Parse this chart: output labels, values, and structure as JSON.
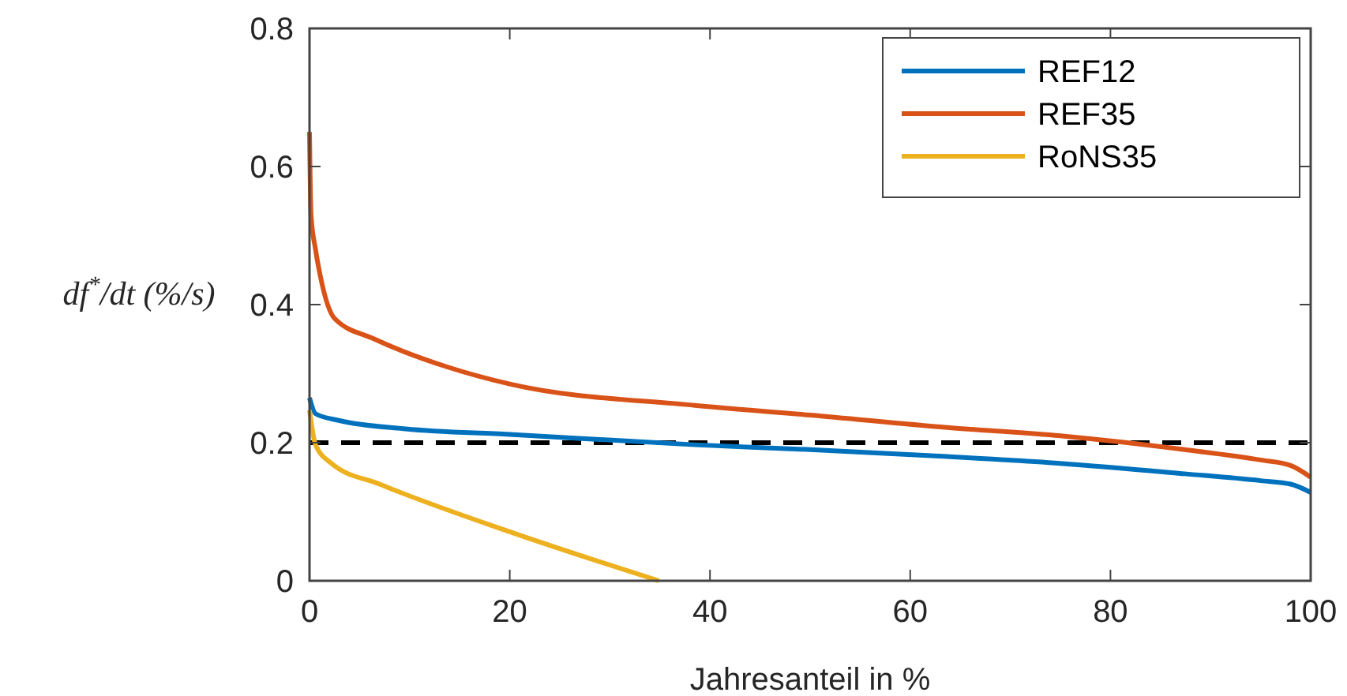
{
  "chart_data": {
    "type": "line",
    "xlabel": "Jahresanteil in %",
    "ylabel": "df$^{*}$/dt  (%/s)",
    "xlim": [
      0,
      100
    ],
    "ylim": [
      0,
      0.8
    ],
    "xticks": [
      0,
      20,
      40,
      60,
      80,
      100
    ],
    "yticks": [
      0,
      0.2,
      0.4,
      0.6,
      0.8
    ],
    "grid": false,
    "legend": "top right",
    "line_style": "solid",
    "marker": "none",
    "series": [
      {
        "name": "REF12",
        "color": "#0072bd",
        "x": [
          0,
          0.6,
          3,
          9.6,
          20,
          38.5,
          50,
          63.7,
          75,
          87.4,
          95,
          98,
          100
        ],
        "values": [
          0.265,
          0.242,
          0.232,
          0.22,
          0.212,
          0.197,
          0.19,
          0.18,
          0.17,
          0.155,
          0.145,
          0.14,
          0.128
        ]
      },
      {
        "name": "REF35",
        "color": "#d95319",
        "x": [
          0,
          0.15,
          0.6,
          1.1,
          2.5,
          6.5,
          13.7,
          20,
          38.5,
          50,
          63.7,
          75,
          87.4,
          95,
          98,
          100
        ],
        "values": [
          0.65,
          0.53,
          0.48,
          0.44,
          0.38,
          0.35,
          0.31,
          0.285,
          0.254,
          0.24,
          0.222,
          0.21,
          0.19,
          0.175,
          0.167,
          0.15
        ]
      },
      {
        "name": "RoNS35",
        "color": "#edb120",
        "x": [
          0,
          0.6,
          2.2,
          7,
          20,
          34.9
        ],
        "values": [
          0.247,
          0.197,
          0.17,
          0.14,
          0.071,
          0
        ]
      }
    ],
    "ref_lines": [
      {
        "axis": "y",
        "value": 0.2,
        "color": "#000000",
        "line_style": "dashed"
      }
    ]
  }
}
